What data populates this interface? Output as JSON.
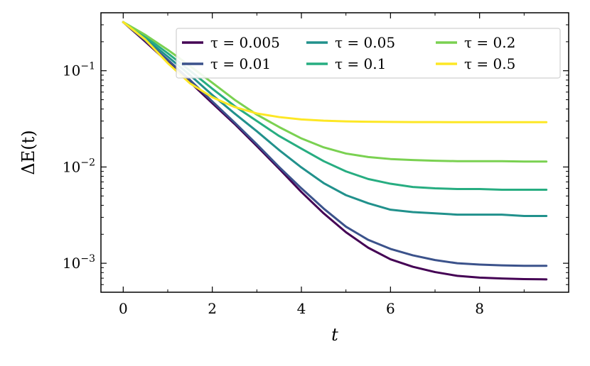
{
  "chart_data": {
    "type": "line",
    "xlabel": "t",
    "ylabel": "ΔE(t)",
    "yscale": "log",
    "xlim": [
      -0.5,
      10.0
    ],
    "ylim": [
      0.0005,
      0.4
    ],
    "grid": false,
    "legend_placement": "top-right",
    "x_ticks": [
      0,
      2,
      4,
      6,
      8
    ],
    "y_ticks": [
      {
        "value": 0.1,
        "base": "10",
        "exp": "−1"
      },
      {
        "value": 0.01,
        "base": "10",
        "exp": "−2"
      },
      {
        "value": 0.001,
        "base": "10",
        "exp": "−3"
      }
    ],
    "x": [
      0,
      0.5,
      1,
      1.5,
      2,
      2.5,
      3,
      3.5,
      4,
      4.5,
      5,
      5.5,
      6,
      6.5,
      7,
      7.5,
      8,
      8.5,
      9,
      9.5
    ],
    "series": [
      {
        "name": "τ = 0.005",
        "color": "#440154",
        "values": [
          0.32,
          0.2,
          0.123,
          0.076,
          0.046,
          0.028,
          0.0165,
          0.0096,
          0.0055,
          0.0033,
          0.0021,
          0.00145,
          0.0011,
          0.00092,
          0.00081,
          0.00074,
          0.00071,
          0.000695,
          0.000685,
          0.00068
        ]
      },
      {
        "name": "τ = 0.01",
        "color": "#3b528b",
        "values": [
          0.32,
          0.205,
          0.13,
          0.08,
          0.048,
          0.029,
          0.0172,
          0.01,
          0.006,
          0.0037,
          0.0024,
          0.00175,
          0.00141,
          0.00121,
          0.00108,
          0.001,
          0.00097,
          0.00095,
          0.00094,
          0.00094
        ]
      },
      {
        "name": "τ = 0.05",
        "color": "#21918c",
        "values": [
          0.32,
          0.215,
          0.14,
          0.09,
          0.056,
          0.036,
          0.0235,
          0.015,
          0.0099,
          0.0068,
          0.0051,
          0.0042,
          0.0036,
          0.0034,
          0.0033,
          0.0032,
          0.0032,
          0.0032,
          0.0031,
          0.0031
        ]
      },
      {
        "name": "τ = 0.1",
        "color": "#27ad81",
        "values": [
          0.32,
          0.225,
          0.152,
          0.1,
          0.065,
          0.043,
          0.03,
          0.021,
          0.0155,
          0.0115,
          0.009,
          0.0075,
          0.0067,
          0.0062,
          0.006,
          0.0059,
          0.0059,
          0.0058,
          0.0058,
          0.0058
        ]
      },
      {
        "name": "τ = 0.2",
        "color": "#7ad151",
        "values": [
          0.32,
          0.235,
          0.165,
          0.112,
          0.075,
          0.05,
          0.035,
          0.026,
          0.0198,
          0.016,
          0.0138,
          0.0127,
          0.0121,
          0.0118,
          0.0116,
          0.0115,
          0.0115,
          0.0115,
          0.0114,
          0.0114
        ]
      },
      {
        "name": "τ = 0.5",
        "color": "#fde725",
        "values": [
          0.32,
          0.21,
          0.12,
          0.074,
          0.053,
          0.042,
          0.036,
          0.033,
          0.0312,
          0.0303,
          0.0298,
          0.0295,
          0.0294,
          0.0293,
          0.0293,
          0.0292,
          0.0292,
          0.0292,
          0.0292,
          0.0292
        ]
      }
    ]
  }
}
